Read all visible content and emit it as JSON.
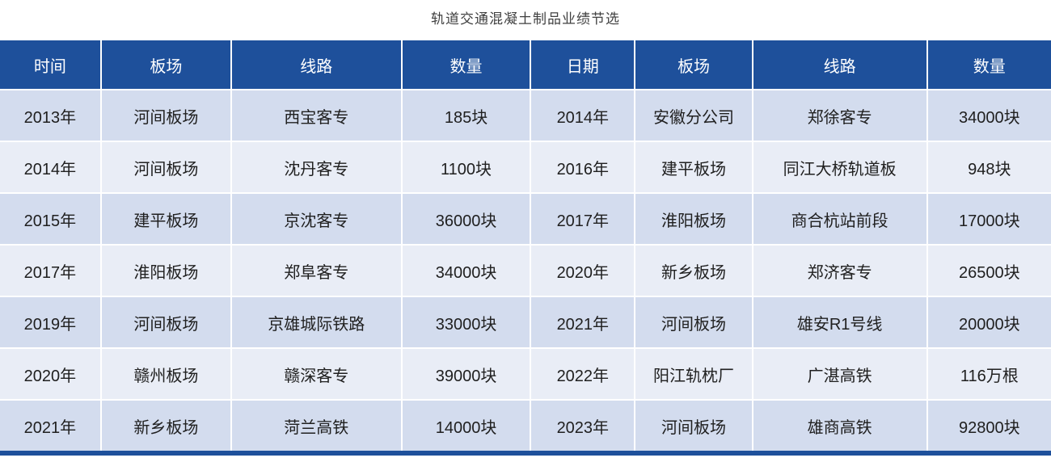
{
  "title": "轨道交通混凝土制品业绩节选",
  "colors": {
    "header_bg": "#1E509B",
    "header_text": "#FFFFFF",
    "row_odd_bg": "#D3DCEE",
    "row_even_bg": "#E9EDF6",
    "cell_text": "#202020",
    "title_text": "#404040",
    "bottom_bar": "#1E509B"
  },
  "table": {
    "headers": [
      "时间",
      "板场",
      "线路",
      "数量",
      "日期",
      "板场",
      "线路",
      "数量"
    ],
    "rows": [
      [
        "2013年",
        "河间板场",
        "西宝客专",
        "185块",
        "2014年",
        "安徽分公司",
        "郑徐客专",
        "34000块"
      ],
      [
        "2014年",
        "河间板场",
        "沈丹客专",
        "1100块",
        "2016年",
        "建平板场",
        "同江大桥轨道板",
        "948块"
      ],
      [
        "2015年",
        "建平板场",
        "京沈客专",
        "36000块",
        "2017年",
        "淮阳板场",
        "商合杭站前段",
        "17000块"
      ],
      [
        "2017年",
        "淮阳板场",
        "郑阜客专",
        "34000块",
        "2020年",
        "新乡板场",
        "郑济客专",
        "26500块"
      ],
      [
        "2019年",
        "河间板场",
        "京雄城际铁路",
        "33000块",
        "2021年",
        "河间板场",
        "雄安R1号线",
        "20000块"
      ],
      [
        "2020年",
        "赣州板场",
        "赣深客专",
        "39000块",
        "2022年",
        "阳江轨枕厂",
        "广湛高铁",
        "116万根"
      ],
      [
        "2021年",
        "新乡板场",
        "菏兰高铁",
        "14000块",
        "2023年",
        "河间板场",
        "雄商高铁",
        "92800块"
      ]
    ]
  }
}
